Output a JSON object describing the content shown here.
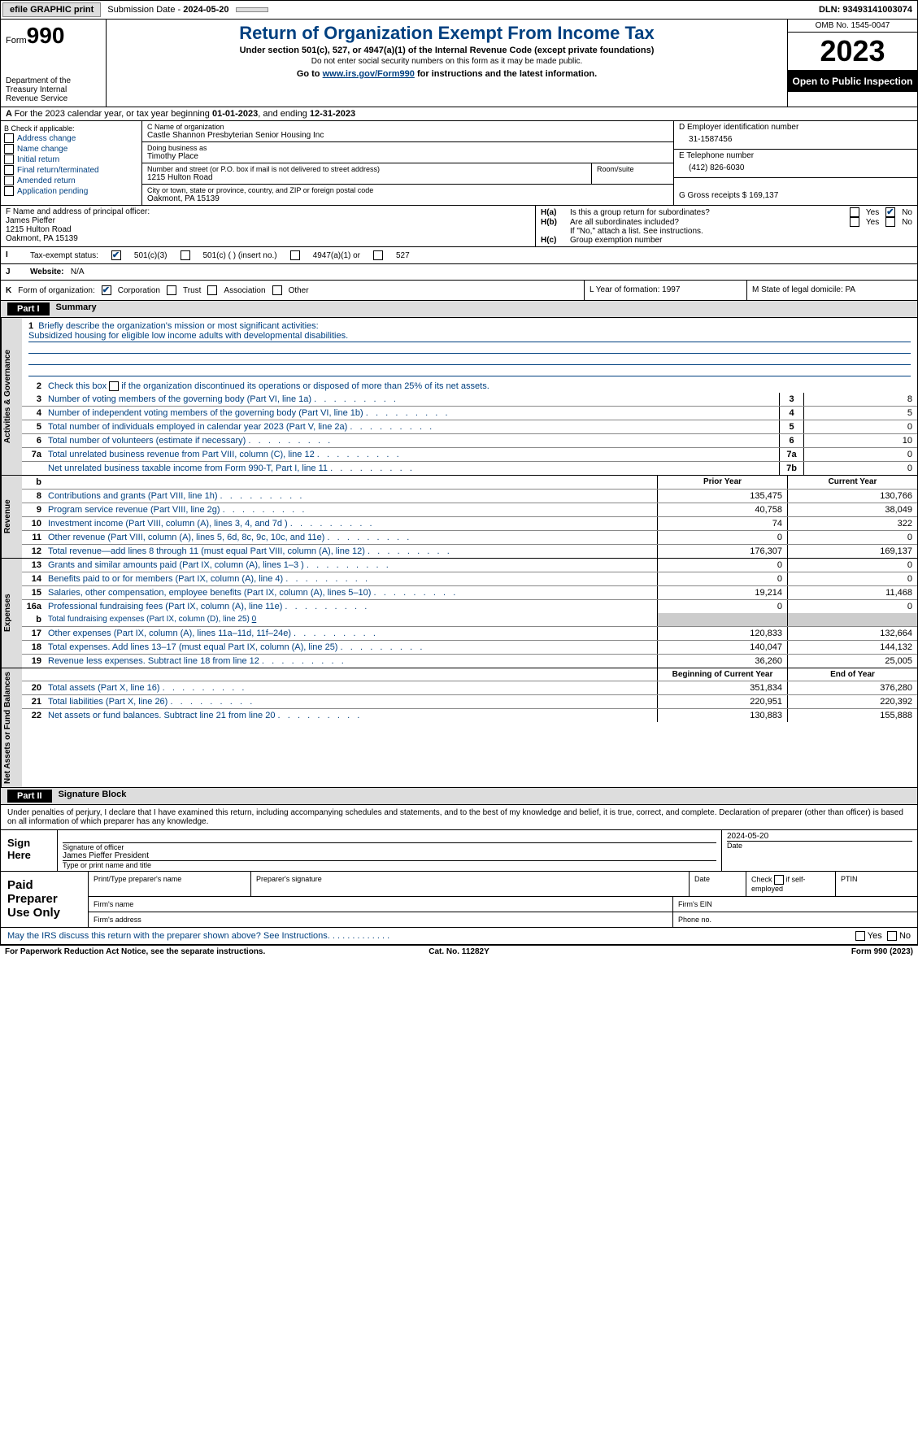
{
  "topbar": {
    "efile": "efile GRAPHIC print",
    "sub_label": "Submission Date - ",
    "sub_date": "2024-05-20",
    "dln_label": "DLN: ",
    "dln": "93493141003074"
  },
  "header": {
    "form_prefix": "Form",
    "form_no": "990",
    "dept": "Department of the Treasury Internal Revenue Service",
    "title": "Return of Organization Exempt From Income Tax",
    "sub1": "Under section 501(c), 527, or 4947(a)(1) of the Internal Revenue Code (except private foundations)",
    "sub2": "Do not enter social security numbers on this form as it may be made public.",
    "sub3_a": "Go to ",
    "sub3_link": "www.irs.gov/Form990",
    "sub3_b": " for instructions and the latest information.",
    "omb": "OMB No. 1545-0047",
    "year": "2023",
    "inspect": "Open to Public Inspection"
  },
  "row_a": {
    "text_a": "For the 2023 calendar year, or tax year beginning ",
    "begin": "01-01-2023",
    "text_b": ", and ending ",
    "end": "12-31-2023"
  },
  "b": {
    "label": "B Check if applicable:",
    "opts": [
      "Address change",
      "Name change",
      "Initial return",
      "Final return/terminated",
      "Amended return",
      "Application pending"
    ]
  },
  "c": {
    "name_lbl": "C Name of organization",
    "name": "Castle Shannon Presbyterian Senior Housing Inc",
    "dba_lbl": "Doing business as",
    "dba": "Timothy Place",
    "addr_lbl": "Number and street (or P.O. box if mail is not delivered to street address)",
    "room_lbl": "Room/suite",
    "addr": "1215 Hulton Road",
    "city_lbl": "City or town, state or province, country, and ZIP or foreign postal code",
    "city": "Oakmont, PA   15139"
  },
  "d": {
    "ein_lbl": "D Employer identification number",
    "ein": "31-1587456",
    "tel_lbl": "E Telephone number",
    "tel": "(412) 826-6030",
    "gross_lbl": "G Gross receipts $ ",
    "gross": "169,137"
  },
  "f": {
    "lbl": "F  Name and address of principal officer:",
    "name": "James Pieffer",
    "addr1": "1215 Hulton Road",
    "addr2": "Oakmont, PA   15139"
  },
  "h": {
    "a_lbl": "H(a)",
    "a_txt": "Is this a group return for subordinates?",
    "b_lbl": "H(b)",
    "b_txt": "Are all subordinates included?",
    "b_note": "If \"No,\" attach a list. See instructions.",
    "c_lbl": "H(c)",
    "c_txt": "Group exemption number",
    "yes": "Yes",
    "no": "No"
  },
  "i": {
    "lbl": "I",
    "txt": "Tax-exempt status:",
    "o1": "501(c)(3)",
    "o2": "501(c) (   ) (insert no.)",
    "o3": "4947(a)(1) or",
    "o4": "527"
  },
  "j": {
    "lbl": "J",
    "txt": "Website:",
    "val": "N/A"
  },
  "k": {
    "lbl": "K",
    "txt": "Form of organization:",
    "o1": "Corporation",
    "o2": "Trust",
    "o3": "Association",
    "o4": "Other"
  },
  "l": {
    "txt": "L Year of formation: ",
    "val": "1997"
  },
  "m": {
    "txt": "M State of legal domicile: ",
    "val": "PA"
  },
  "part1": {
    "label": "Part I",
    "title": "Summary"
  },
  "vtabs": {
    "gov": "Activities & Governance",
    "rev": "Revenue",
    "exp": "Expenses",
    "net": "Net Assets or Fund Balances"
  },
  "s1": {
    "n": "1",
    "txt": "Briefly describe the organization's mission or most significant activities:",
    "mission": "Subsidized housing for eligible low income adults with developmental disabilities."
  },
  "s2": {
    "n": "2",
    "txt": "Check this box        if the organization discontinued its operations or disposed of more than 25% of its net assets."
  },
  "gov_rows": [
    {
      "n": "3",
      "txt": "Number of voting members of the governing body (Part VI, line 1a)",
      "c": "3",
      "v": "8"
    },
    {
      "n": "4",
      "txt": "Number of independent voting members of the governing body (Part VI, line 1b)",
      "c": "4",
      "v": "5"
    },
    {
      "n": "5",
      "txt": "Total number of individuals employed in calendar year 2023 (Part V, line 2a)",
      "c": "5",
      "v": "0"
    },
    {
      "n": "6",
      "txt": "Total number of volunteers (estimate if necessary)",
      "c": "6",
      "v": "10"
    },
    {
      "n": "7a",
      "txt": "Total unrelated business revenue from Part VIII, column (C), line 12",
      "c": "7a",
      "v": "0"
    },
    {
      "n": "",
      "txt": "Net unrelated business taxable income from Form 990-T, Part I, line 11",
      "c": "7b",
      "v": "0"
    }
  ],
  "col_hdrs": {
    "prior": "Prior Year",
    "current": "Current Year",
    "beg": "Beginning of Current Year",
    "end": "End of Year"
  },
  "rev_rows": [
    {
      "n": "8",
      "txt": "Contributions and grants (Part VIII, line 1h)",
      "p": "135,475",
      "c": "130,766"
    },
    {
      "n": "9",
      "txt": "Program service revenue (Part VIII, line 2g)",
      "p": "40,758",
      "c": "38,049"
    },
    {
      "n": "10",
      "txt": "Investment income (Part VIII, column (A), lines 3, 4, and 7d )",
      "p": "74",
      "c": "322"
    },
    {
      "n": "11",
      "txt": "Other revenue (Part VIII, column (A), lines 5, 6d, 8c, 9c, 10c, and 11e)",
      "p": "0",
      "c": "0"
    },
    {
      "n": "12",
      "txt": "Total revenue—add lines 8 through 11 (must equal Part VIII, column (A), line 12)",
      "p": "176,307",
      "c": "169,137"
    }
  ],
  "exp_rows": [
    {
      "n": "13",
      "txt": "Grants and similar amounts paid (Part IX, column (A), lines 1–3 )",
      "p": "0",
      "c": "0"
    },
    {
      "n": "14",
      "txt": "Benefits paid to or for members (Part IX, column (A), line 4)",
      "p": "0",
      "c": "0"
    },
    {
      "n": "15",
      "txt": "Salaries, other compensation, employee benefits (Part IX, column (A), lines 5–10)",
      "p": "19,214",
      "c": "11,468"
    },
    {
      "n": "16a",
      "txt": "Professional fundraising fees (Part IX, column (A), line 11e)",
      "p": "0",
      "c": "0"
    }
  ],
  "s16b": {
    "n": "b",
    "txt": "Total fundraising expenses (Part IX, column (D), line 25) ",
    "val": "0"
  },
  "exp_rows2": [
    {
      "n": "17",
      "txt": "Other expenses (Part IX, column (A), lines 11a–11d, 11f–24e)",
      "p": "120,833",
      "c": "132,664"
    },
    {
      "n": "18",
      "txt": "Total expenses. Add lines 13–17 (must equal Part IX, column (A), line 25)",
      "p": "140,047",
      "c": "144,132"
    },
    {
      "n": "19",
      "txt": "Revenue less expenses. Subtract line 18 from line 12",
      "p": "36,260",
      "c": "25,005"
    }
  ],
  "net_rows": [
    {
      "n": "20",
      "txt": "Total assets (Part X, line 16)",
      "p": "351,834",
      "c": "376,280"
    },
    {
      "n": "21",
      "txt": "Total liabilities (Part X, line 26)",
      "p": "220,951",
      "c": "220,392"
    },
    {
      "n": "22",
      "txt": "Net assets or fund balances. Subtract line 21 from line 20",
      "p": "130,883",
      "c": "155,888"
    }
  ],
  "part2": {
    "label": "Part II",
    "title": "Signature Block"
  },
  "sig": {
    "decl": "Under penalties of perjury, I declare that I have examined this return, including accompanying schedules and statements, and to the best of my knowledge and belief, it is true, correct, and complete. Declaration of preparer (other than officer) is based on all information of which preparer has any knowledge.",
    "here": "Sign Here",
    "sig_lbl": "Signature of officer",
    "date_lbl": "Date",
    "date": "2024-05-20",
    "name": "James Pieffer President",
    "name_lbl": "Type or print name and title"
  },
  "prep": {
    "lbl": "Paid Preparer Use Only",
    "c1": "Print/Type preparer's name",
    "c2": "Preparer's signature",
    "c3": "Date",
    "c4a": "Check",
    "c4b": "if self-employed",
    "c5": "PTIN",
    "fname": "Firm's name",
    "fein": "Firm's EIN",
    "faddr": "Firm's address",
    "fphone": "Phone no."
  },
  "irs_q": {
    "txt": "May the IRS discuss this return with the preparer shown above? See Instructions.",
    "yes": "Yes",
    "no": "No"
  },
  "footer": {
    "l": "For Paperwork Reduction Act Notice, see the separate instructions.",
    "m": "Cat. No. 11282Y",
    "r": "Form 990 (2023)"
  }
}
